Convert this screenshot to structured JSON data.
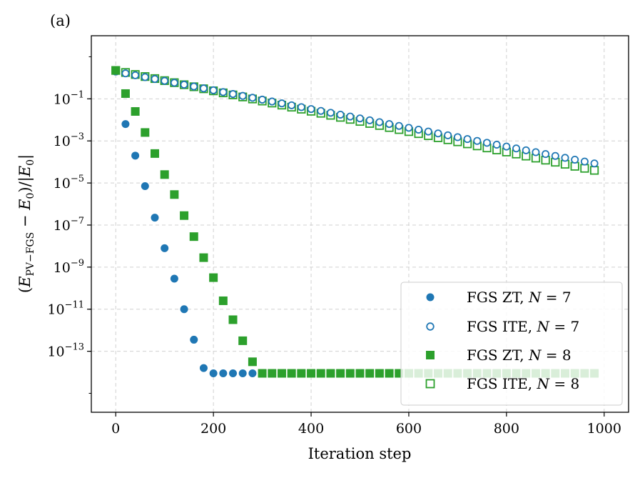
{
  "panel_label": "(a)",
  "colors": {
    "blue": "#1f77b4",
    "green": "#2ca02c",
    "grid": "#d0d0d0"
  },
  "chart_data": {
    "type": "scatter",
    "title": "",
    "xlabel": "Iteration step",
    "ylabel": "(E_PV−FGS − E_0)/|E_0|",
    "ylabel_parts": {
      "open": "(",
      "E1": "E",
      "sub1": "PV−FGS",
      "minus": " − ",
      "E2": "E",
      "sub2": "0",
      "mid": ")/|",
      "E3": "E",
      "sub3": "0",
      "close": "|"
    },
    "xlim": [
      -50,
      1050
    ],
    "ylim_log10": [
      -15.9,
      2.0
    ],
    "yscale": "log",
    "grid": true,
    "legend_position": "lower-right",
    "x_ticks": [
      {
        "value": 0,
        "label": "0"
      },
      {
        "value": 200,
        "label": "200"
      },
      {
        "value": 400,
        "label": "400"
      },
      {
        "value": 600,
        "label": "600"
      },
      {
        "value": 800,
        "label": "800"
      },
      {
        "value": 1000,
        "label": "1000"
      }
    ],
    "y_ticks": [
      {
        "exp": -1,
        "base": "10",
        "sup": "−1"
      },
      {
        "exp": -3,
        "base": "10",
        "sup": "−3"
      },
      {
        "exp": -5,
        "base": "10",
        "sup": "−5"
      },
      {
        "exp": -7,
        "base": "10",
        "sup": "−7"
      },
      {
        "exp": -9,
        "base": "10",
        "sup": "−9"
      },
      {
        "exp": -11,
        "base": "10",
        "sup": "−11"
      },
      {
        "exp": -13,
        "base": "10",
        "sup": "−13"
      }
    ],
    "series": [
      {
        "name": "FGS ZT, N = 7",
        "legend": {
          "text": "FGS ZT, ",
          "var": "N",
          "eq": " = 7"
        },
        "marker": "circle",
        "filled": true,
        "color": "#1f77b4",
        "x": [
          0,
          20,
          40,
          60,
          80,
          100,
          120,
          140,
          160,
          180,
          200,
          220,
          240,
          260,
          280
        ],
        "log10y": [
          0.3,
          -2.2,
          -3.7,
          -5.15,
          -6.65,
          -8.1,
          -9.55,
          -11.0,
          -12.45,
          -13.8,
          -14.05,
          -14.05,
          -14.05,
          -14.05,
          -14.05
        ]
      },
      {
        "name": "FGS ITE, N = 7",
        "legend": {
          "text": "FGS ITE, ",
          "var": "N",
          "eq": " = 7"
        },
        "marker": "circle",
        "filled": false,
        "color": "#1f77b4",
        "x": {
          "start": 0,
          "step": 20,
          "count": 50
        },
        "log10y_linear": {
          "y_at_start": 0.3,
          "y_at_end": -4.07
        }
      },
      {
        "name": "FGS ZT, N = 8",
        "legend": {
          "text": "FGS ZT, ",
          "var": "N",
          "eq": " = 8"
        },
        "marker": "square",
        "filled": true,
        "color": "#2ca02c",
        "x": [
          0,
          20,
          40,
          60,
          80,
          100,
          120,
          140,
          160,
          180,
          200,
          220,
          240,
          260,
          280
        ],
        "log10y": [
          0.35,
          -0.75,
          -1.6,
          -2.6,
          -3.6,
          -4.6,
          -5.55,
          -6.55,
          -7.55,
          -8.55,
          -9.5,
          -10.6,
          -11.5,
          -12.5,
          -13.5
        ],
        "floor": {
          "x_start": 300,
          "x_end": 980,
          "step": 20,
          "log10y": -14.05
        }
      },
      {
        "name": "FGS ITE, N = 8",
        "legend": {
          "text": "FGS ITE, ",
          "var": "N",
          "eq": " = 8"
        },
        "marker": "square",
        "filled": false,
        "color": "#2ca02c",
        "x": {
          "start": 0,
          "step": 20,
          "count": 50
        },
        "log10y_linear": {
          "y_at_start": 0.35,
          "y_at_end": -4.4
        }
      }
    ]
  }
}
